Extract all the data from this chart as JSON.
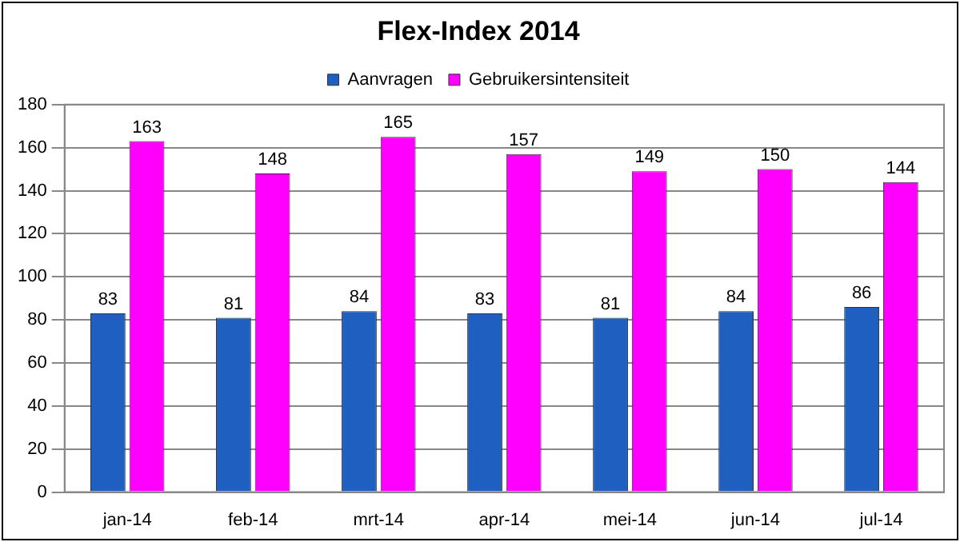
{
  "chart_data": {
    "type": "bar",
    "title": "Flex-Index 2014",
    "categories": [
      "jan-14",
      "feb-14",
      "mrt-14",
      "apr-14",
      "mei-14",
      "jun-14",
      "jul-14"
    ],
    "series": [
      {
        "name": "Aanvragen",
        "color": "#1f5fbf",
        "values": [
          83,
          81,
          84,
          83,
          81,
          84,
          86
        ]
      },
      {
        "name": "Gebruikersintensiteit",
        "color": "#ff00ff",
        "values": [
          163,
          148,
          165,
          157,
          149,
          150,
          144
        ]
      }
    ],
    "ylim": [
      0,
      180
    ],
    "yticks": [
      0,
      20,
      40,
      60,
      80,
      100,
      120,
      140,
      160,
      180
    ],
    "grid": "y",
    "legend": "top",
    "data_labels": true
  }
}
